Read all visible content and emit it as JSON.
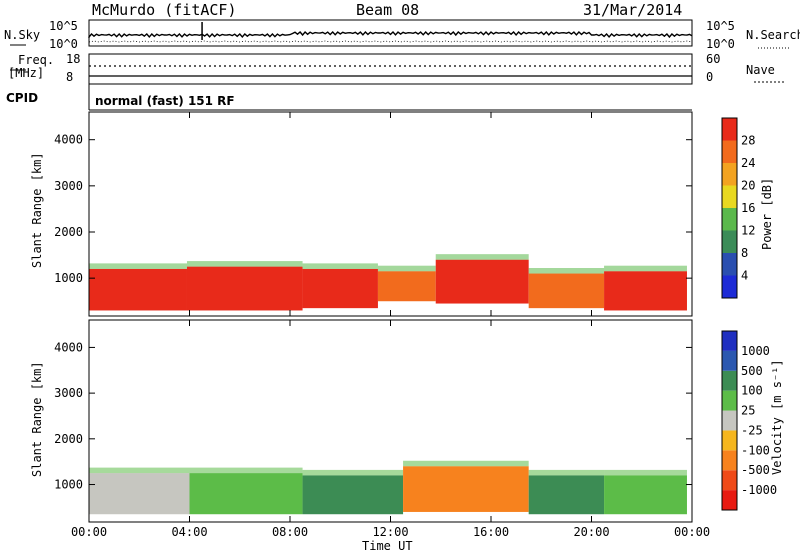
{
  "header": {
    "station": "McMurdo (fitACF)",
    "beam": "Beam 08",
    "date": "31/Mar/2014"
  },
  "noise_panel": {
    "left_label": "N.Sky",
    "right_label": "N.Search",
    "left_ticks": [
      "10^5",
      "10^0"
    ],
    "right_ticks": [
      "10^5",
      "10^0"
    ]
  },
  "freq_panel": {
    "left_label_1": "Freq.",
    "left_label_2": "[MHz]",
    "right_label": "Nave",
    "left_ticks": [
      "18",
      "8"
    ],
    "right_ticks": [
      "60",
      "0"
    ]
  },
  "cpid": {
    "label": "CPID",
    "value": "normal (fast) 151 RF"
  },
  "colors": {
    "power": [
      "#1d2bd6",
      "#2a4fb0",
      "#3b8c58",
      "#5ab84b",
      "#e8d820",
      "#f3a321",
      "#f26b1d",
      "#e82a1a"
    ],
    "velocity": [
      "#e81a12",
      "#ef4a18",
      "#f7821e",
      "#f5b61e",
      "#c6c6c0",
      "#5cbc48",
      "#3c8c54",
      "#2b58b0",
      "#1f2fc0"
    ]
  },
  "chart_data": [
    {
      "type": "heatmap",
      "title": "",
      "xlabel": "",
      "ylabel": "Slant Range [km]",
      "x_ticks": [
        "00:00",
        "04:00",
        "08:00",
        "12:00",
        "16:00",
        "20:00",
        "00:00"
      ],
      "y_ticks": [
        1000,
        2000,
        3000,
        4000
      ],
      "xlim_hours": [
        0,
        24
      ],
      "ylim_km": [
        180,
        4600
      ],
      "colorbar": {
        "label": "Power [dB]",
        "ticks": [
          4,
          8,
          12,
          16,
          20,
          24,
          28
        ],
        "range": [
          0,
          32
        ]
      },
      "bands": [
        {
          "t0": 0,
          "t1": 3.9,
          "r0": 300,
          "r1": 1200,
          "value": 30
        },
        {
          "t0": 3.9,
          "t1": 8.5,
          "r0": 300,
          "r1": 1250,
          "value": 30
        },
        {
          "t0": 8.5,
          "t1": 11.5,
          "r0": 350,
          "r1": 1200,
          "value": 29
        },
        {
          "t0": 11.5,
          "t1": 13.8,
          "r0": 500,
          "r1": 1150,
          "value": 26
        },
        {
          "t0": 13.8,
          "t1": 17.5,
          "r0": 450,
          "r1": 1400,
          "value": 28
        },
        {
          "t0": 17.5,
          "t1": 20.5,
          "r0": 350,
          "r1": 1100,
          "value": 27
        },
        {
          "t0": 20.5,
          "t1": 23.8,
          "r0": 300,
          "r1": 1150,
          "value": 30
        }
      ]
    },
    {
      "type": "heatmap",
      "title": "",
      "xlabel": "Time UT",
      "ylabel": "Slant Range [km]",
      "x_ticks": [
        "00:00",
        "04:00",
        "08:00",
        "12:00",
        "16:00",
        "20:00",
        "00:00"
      ],
      "y_ticks": [
        1000,
        2000,
        3000,
        4000
      ],
      "xlim_hours": [
        0,
        24
      ],
      "ylim_km": [
        180,
        4600
      ],
      "colorbar": {
        "label": "Velocity [m s⁻¹]",
        "ticks": [
          1000,
          500,
          100,
          25,
          -25,
          -100,
          -500,
          -1000
        ]
      },
      "bands": [
        {
          "t0": 0,
          "t1": 4.0,
          "r0": 350,
          "r1": 1250,
          "value": 0
        },
        {
          "t0": 4.0,
          "t1": 8.5,
          "r0": 350,
          "r1": 1250,
          "value": 60
        },
        {
          "t0": 8.5,
          "t1": 12.5,
          "r0": 350,
          "r1": 1200,
          "value": 150
        },
        {
          "t0": 12.5,
          "t1": 17.5,
          "r0": 400,
          "r1": 1400,
          "value": -250
        },
        {
          "t0": 17.5,
          "t1": 20.5,
          "r0": 350,
          "r1": 1200,
          "value": 300
        },
        {
          "t0": 20.5,
          "t1": 23.8,
          "r0": 350,
          "r1": 1200,
          "value": 40
        }
      ]
    }
  ]
}
